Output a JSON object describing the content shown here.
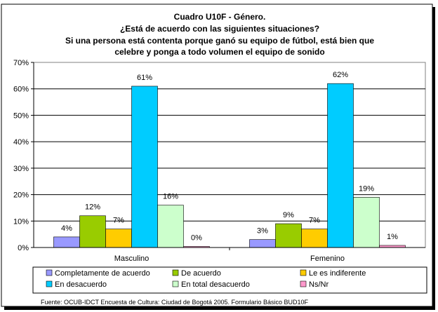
{
  "title_lines": [
    "Cuadro U10F - Género.",
    "¿Está de acuerdo con las siguientes situaciones?",
    "Si una persona está contenta porque ganó su equipo de fútbol, está bien que",
    "celebre y ponga a todo volumen el equipo de sonido"
  ],
  "source": "Fuente: OCUB-IDCT Encuesta de Cultura: Ciudad de Bogotá 2005. Formulario Básico BUD10F",
  "chart_data": {
    "type": "bar",
    "categories": [
      "Masculino",
      "Femenino"
    ],
    "ylim": [
      0,
      70
    ],
    "yticks": [
      0,
      10,
      20,
      30,
      40,
      50,
      60,
      70
    ],
    "ytick_format": "percent",
    "grid": true,
    "legend_position": "bottom",
    "series": [
      {
        "name": "Completamente de acuerdo",
        "color": "#9999ff",
        "values": [
          4,
          3
        ],
        "labels": [
          "4%",
          "3%"
        ]
      },
      {
        "name": "De acuerdo",
        "color": "#99cc00",
        "values": [
          12,
          9
        ],
        "labels": [
          "12%",
          "9%"
        ]
      },
      {
        "name": "Le es indiferente",
        "color": "#ffcc00",
        "values": [
          7,
          7
        ],
        "labels": [
          "7%",
          "7%"
        ]
      },
      {
        "name": "En desacuerdo",
        "color": "#00ccff",
        "values": [
          61,
          62
        ],
        "labels": [
          "61%",
          "62%"
        ]
      },
      {
        "name": "En total desacuerdo",
        "color": "#ccffcc",
        "values": [
          16,
          19
        ],
        "labels": [
          "16%",
          "19%"
        ]
      },
      {
        "name": "Ns/Nr",
        "color": "#ff99cc",
        "values": [
          0.4,
          0.8
        ],
        "labels": [
          "0%",
          "1%"
        ]
      }
    ]
  }
}
